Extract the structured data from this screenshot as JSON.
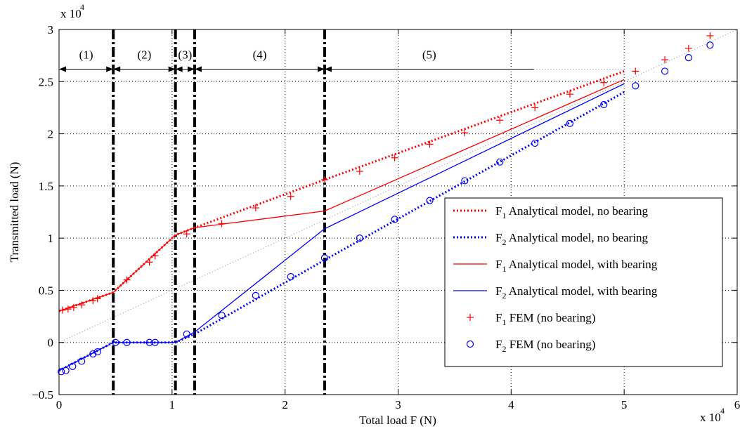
{
  "chart_data": {
    "type": "line",
    "xlabel": "Total load F (N)",
    "ylabel": "Transmitted load (N)",
    "x_scale_label": "x 10",
    "x_scale_exp": "4",
    "y_scale_label": "x 10",
    "y_scale_exp": "4",
    "xlim": [
      0,
      60000
    ],
    "ylim": [
      -5000,
      30000
    ],
    "x_ticks": [
      0,
      10000,
      20000,
      30000,
      40000,
      50000,
      60000
    ],
    "x_tick_labels": [
      "0",
      "1",
      "2",
      "3",
      "4",
      "5",
      "6"
    ],
    "y_ticks": [
      -5000,
      0,
      5000,
      10000,
      15000,
      20000,
      25000,
      30000
    ],
    "y_tick_labels": [
      "−0.5",
      "0",
      "0.5",
      "1",
      "1.5",
      "2",
      "2.5",
      "3"
    ],
    "grid": "dotted",
    "region_boundaries": [
      4800,
      10300,
      12000,
      23500
    ],
    "region_labels": [
      "(1)",
      "(2)",
      "(3)",
      "(4)",
      "(5)"
    ],
    "region_arrow_y": 26200,
    "region_label_y": 27600,
    "region_arrow_end": 42000,
    "reference_line": [
      [
        0,
        0
      ],
      [
        60000,
        30000
      ]
    ],
    "colors": {
      "red": "#ff0000",
      "blue": "#0000ff",
      "grey": "#888888"
    },
    "series": [
      {
        "label": "F",
        "subscript": "1",
        "text": "Analytical model, no bearing",
        "style": "dotted",
        "color": "#ff0000",
        "x": [
          0,
          4800,
          10300,
          12000,
          23500,
          50000
        ],
        "y": [
          3000,
          4800,
          10300,
          11000,
          15600,
          26000
        ]
      },
      {
        "label": "F",
        "subscript": "2",
        "text": "Analytical model, no bearing",
        "style": "dotted",
        "color": "#0000ff",
        "x": [
          0,
          4800,
          10300,
          12000,
          23500,
          50000
        ],
        "y": [
          -2700,
          0,
          0,
          800,
          7900,
          24000
        ]
      },
      {
        "label": "F",
        "subscript": "1",
        "text": "Analytical model, with bearing",
        "style": "solid",
        "color": "#ff0000",
        "x": [
          0,
          4800,
          10300,
          12000,
          23500,
          50000
        ],
        "y": [
          3000,
          4800,
          10300,
          11000,
          12600,
          25200
        ]
      },
      {
        "label": "F",
        "subscript": "2",
        "text": "Analytical model, with bearing",
        "style": "solid",
        "color": "#0000ff",
        "x": [
          0,
          4800,
          10300,
          12000,
          23500,
          50000
        ],
        "y": [
          -2700,
          0,
          0,
          1000,
          10900,
          24800
        ]
      },
      {
        "label": "F",
        "subscript": "1",
        "text": "FEM (no bearing)",
        "style": "marker-plus",
        "color": "#ff0000",
        "x": [
          300,
          800,
          1300,
          2000,
          3000,
          3400,
          6000,
          8000,
          8500,
          11300,
          14400,
          17400,
          20500,
          23500,
          26600,
          29700,
          32800,
          35900,
          39000,
          42100,
          45200,
          48200,
          51000,
          53600,
          55700,
          57600
        ],
        "y": [
          3100,
          3200,
          3350,
          3600,
          4000,
          4200,
          6000,
          7700,
          8300,
          10400,
          11400,
          12900,
          14000,
          15600,
          16400,
          17700,
          19000,
          20100,
          21300,
          22500,
          23800,
          24900,
          26000,
          27100,
          28200,
          29400
        ]
      },
      {
        "label": "F",
        "subscript": "2",
        "text": "FEM (no bearing)",
        "style": "marker-circle",
        "color": "#0000ff",
        "x": [
          200,
          600,
          1200,
          2000,
          3000,
          3400,
          5000,
          6000,
          8000,
          8500,
          11300,
          14400,
          17400,
          20500,
          23500,
          26600,
          29700,
          32800,
          35900,
          39000,
          42100,
          45200,
          48200,
          51000,
          53600,
          55700,
          57600
        ],
        "y": [
          -2800,
          -2700,
          -2300,
          -1800,
          -1100,
          -900,
          0,
          0,
          0,
          0,
          800,
          2600,
          4500,
          6300,
          8100,
          10000,
          11800,
          13600,
          15500,
          17300,
          19100,
          21000,
          22800,
          24600,
          26000,
          27300,
          28500
        ]
      }
    ]
  }
}
